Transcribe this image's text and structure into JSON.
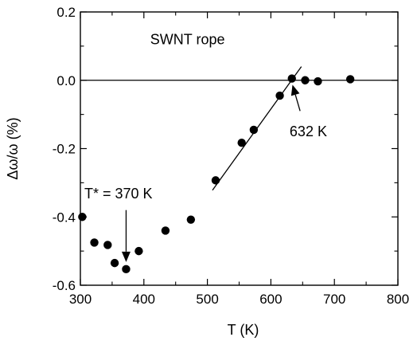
{
  "chart_data": {
    "type": "scatter",
    "title": "",
    "xlabel": "T (K)",
    "ylabel": "Δω/ω (%)",
    "xlim": [
      300,
      800
    ],
    "ylim": [
      -0.6,
      0.2
    ],
    "x_ticks": [
      300,
      400,
      500,
      600,
      700,
      800
    ],
    "x_tick_labels": [
      "300",
      "400",
      "500",
      "600",
      "700",
      "800"
    ],
    "y_ticks": [
      -0.6,
      -0.4,
      -0.2,
      0.0,
      0.2
    ],
    "y_tick_labels": [
      "-0.6",
      "-0.4",
      "-0.2",
      "0.0",
      "0.2"
    ],
    "grid": false,
    "series": [
      {
        "x": [
          303,
          322,
          343,
          354,
          372,
          392,
          434,
          474,
          513,
          554,
          573,
          614,
          633,
          654,
          674,
          725
        ],
        "y": [
          -0.4,
          -0.475,
          -0.482,
          -0.535,
          -0.553,
          -0.5,
          -0.44,
          -0.408,
          -0.293,
          -0.183,
          -0.145,
          -0.045,
          0.005,
          0.0,
          -0.003,
          0.003
        ],
        "color": "#000000"
      }
    ],
    "reference_line": {
      "y": 0.0,
      "color": "#000000"
    },
    "fit_line": {
      "x": [
        508,
        648
      ],
      "y": [
        -0.322,
        0.04
      ],
      "color": "#000000"
    },
    "annotations": [
      {
        "text": "SWNT rope",
        "x": 400,
        "y": 0.12
      },
      {
        "text": "632 K",
        "x": 632,
        "y": -0.15,
        "arrow_from": [
          646,
          -0.09
        ],
        "arrow_to": [
          634,
          -0.013
        ]
      },
      {
        "text": "T* = 370 K",
        "x": 300,
        "y": -0.33,
        "arrow_from": [
          372,
          -0.38
        ],
        "arrow_to": [
          372,
          -0.532
        ]
      }
    ]
  }
}
